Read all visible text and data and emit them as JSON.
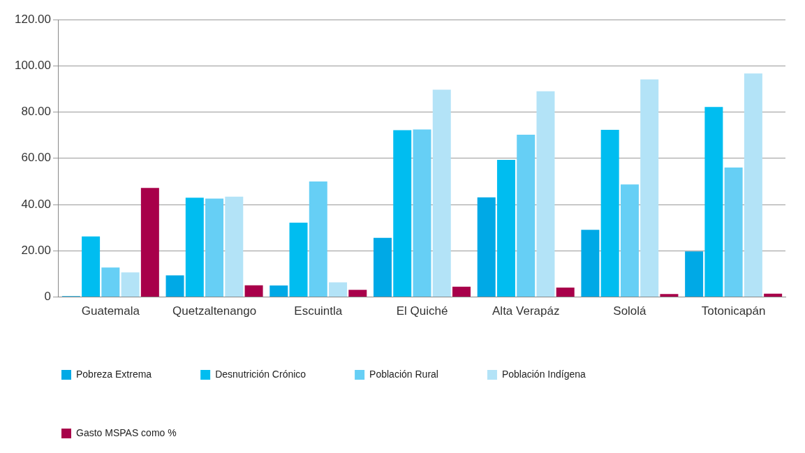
{
  "chart_data": {
    "type": "bar",
    "categories": [
      "Guatemala",
      "Quetzaltenango",
      "Escuintla",
      "El Quiché",
      "Alta Verapáz",
      "Sololá",
      "Totonicapán"
    ],
    "series": [
      {
        "name": "Pobreza Extrema",
        "color": "#00a9e6",
        "values": [
          0.4,
          9.4,
          5.0,
          25.6,
          43.1,
          29.1,
          19.7
        ]
      },
      {
        "name": "Desnutrición Crónico",
        "color": "#00bdf0",
        "values": [
          26.2,
          43.0,
          32.2,
          72.2,
          59.3,
          72.3,
          82.2
        ]
      },
      {
        "name": "Población Rural",
        "color": "#66cff5",
        "values": [
          12.8,
          42.6,
          50.0,
          72.5,
          70.2,
          48.7,
          56.0
        ]
      },
      {
        "name": "Población Indígena",
        "color": "#b3e3f7",
        "values": [
          10.7,
          43.4,
          6.4,
          89.7,
          89.0,
          94.1,
          96.7
        ]
      },
      {
        "name": "Gasto MSPAS como %",
        "color": "#a8004a",
        "values": [
          47.2,
          5.1,
          3.1,
          4.5,
          4.1,
          1.3,
          1.5
        ]
      }
    ],
    "ylim": [
      0,
      120
    ],
    "yticks": [
      {
        "value": 0,
        "label": "0"
      },
      {
        "value": 20,
        "label": "20.00"
      },
      {
        "value": 40,
        "label": "40.00"
      },
      {
        "value": 60,
        "label": "60.00"
      },
      {
        "value": 80,
        "label": "80.00"
      },
      {
        "value": 100,
        "label": "100.00"
      },
      {
        "value": 120,
        "label": "120.00"
      }
    ],
    "grid": "y",
    "legend": "bottom"
  }
}
